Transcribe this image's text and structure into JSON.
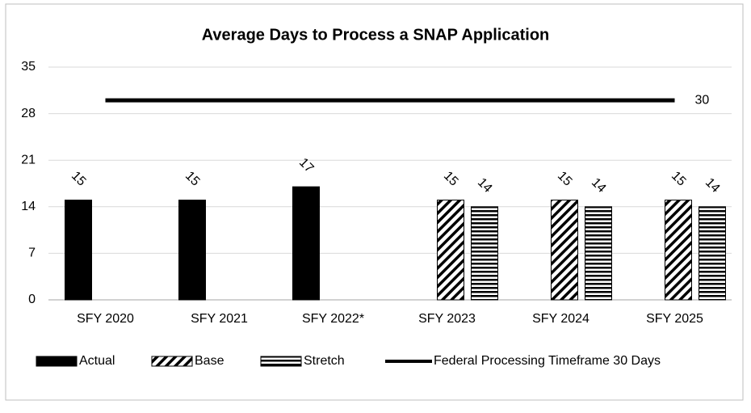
{
  "chart_data": {
    "type": "bar",
    "title": "Average Days to Process a SNAP Application",
    "categories": [
      "SFY 2020",
      "SFY 2021",
      "SFY 2022*",
      "SFY 2023",
      "SFY 2024",
      "SFY 2025"
    ],
    "series": [
      {
        "name": "Actual",
        "color": "#000000",
        "pattern": "solid",
        "values": [
          15,
          15,
          17,
          null,
          null,
          null
        ]
      },
      {
        "name": "Base",
        "color": "#000000",
        "pattern": "diagonal",
        "values": [
          null,
          null,
          null,
          15,
          15,
          15
        ]
      },
      {
        "name": "Stretch",
        "color": "#000000",
        "pattern": "horizontal",
        "values": [
          null,
          null,
          null,
          14,
          14,
          14
        ]
      },
      {
        "name": "Federal Processing Timeframe 30 Days",
        "color": "#000000",
        "type": "line",
        "values": [
          30,
          30,
          30,
          30,
          30,
          30
        ]
      }
    ],
    "ylim": [
      0,
      35
    ],
    "yticks": [
      0,
      7,
      14,
      21,
      28,
      35
    ],
    "grid": true,
    "legend": "bottom"
  }
}
